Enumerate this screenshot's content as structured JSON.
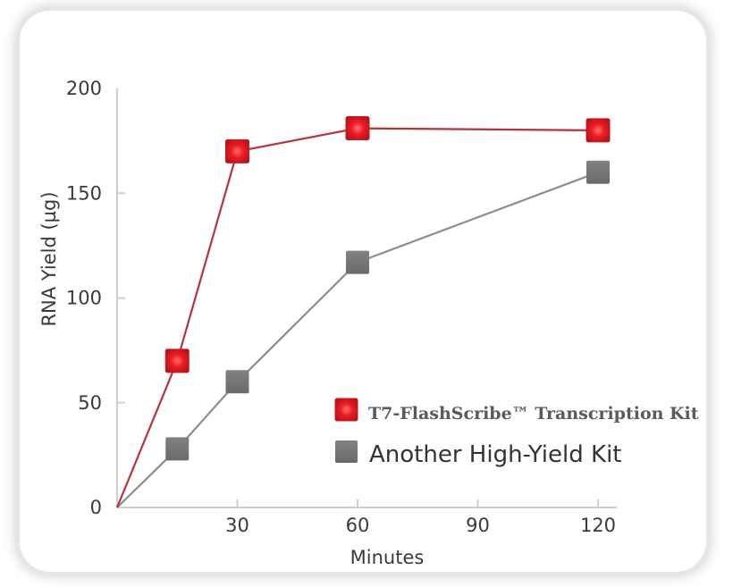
{
  "chart_data": {
    "type": "line",
    "title": "",
    "xlabel": "Minutes",
    "ylabel": "RNA Yield (µg)",
    "xlim": [
      0,
      120
    ],
    "ylim": [
      0,
      200
    ],
    "xticks": [
      "30",
      "60",
      "90",
      "120"
    ],
    "yticks": [
      "0",
      "50",
      "100",
      "150",
      "200"
    ],
    "grid": false,
    "legend_position": "bottom-right",
    "series": [
      {
        "name": "T7-FlashScribe™ Transcription Kit",
        "color": "#b5343c",
        "marker_color": "#e8141e",
        "x": [
          0,
          15,
          30,
          60,
          120
        ],
        "y": [
          0,
          70,
          170,
          181,
          180
        ]
      },
      {
        "name": "Another High-Yield Kit",
        "color": "#8c8c8c",
        "marker_color": "#737373",
        "x": [
          0,
          15,
          30,
          60,
          120
        ],
        "y": [
          0,
          28,
          60,
          117,
          160
        ]
      }
    ]
  }
}
